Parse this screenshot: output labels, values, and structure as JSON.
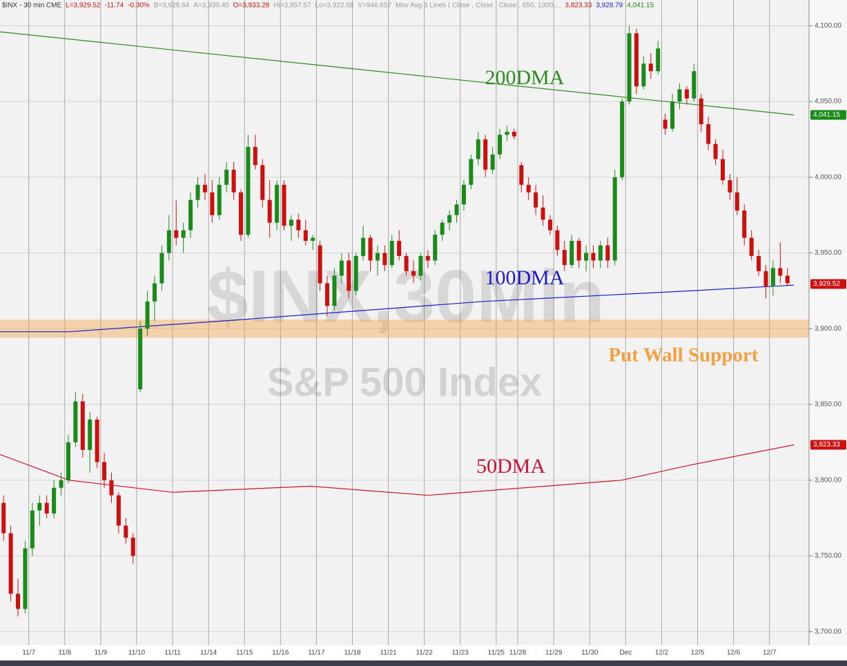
{
  "chart_data": {
    "type": "candlestick",
    "header": [
      {
        "text": "$INX - 30 min  CME",
        "color": "#333333"
      },
      {
        "text": "L=3,929.52",
        "color": "#cc1010"
      },
      {
        "text": "-11.74",
        "color": "#cc1010"
      },
      {
        "text": "-0.30%",
        "color": "#cc1010"
      },
      {
        "text": "B=3,928.64",
        "color": "#999999"
      },
      {
        "text": "A=3,930.40",
        "color": "#999999"
      },
      {
        "text": "O=3,933.28",
        "color": "#cc1010"
      },
      {
        "text": "Hi=3,957.57",
        "color": "#999999"
      },
      {
        "text": "Lo=3,922.68",
        "color": "#999999"
      },
      {
        "text": "V=946,657",
        "color": "#999999"
      },
      {
        "text": "Mov Avg 3 Lines ( Close , Close , Close , 650, 1300,...",
        "color": "#999999"
      },
      {
        "text": "3,823.33",
        "color": "#cc1010"
      },
      {
        "text": "3,928.79",
        "color": "#1a1acc"
      },
      {
        "text": "4,041.15",
        "color": "#1a8a1a"
      }
    ],
    "watermark": "$INX,30Min",
    "subtitle": "S&P 500 Index",
    "up_color": "#1a8a1a",
    "down_color": "#cc1010",
    "xlim": [
      0,
      112.5
    ],
    "xticks": [
      {
        "value": 4,
        "label": "11/7"
      },
      {
        "value": 9,
        "label": "11/8"
      },
      {
        "value": 14,
        "label": "11/9"
      },
      {
        "value": 19,
        "label": "11/10"
      },
      {
        "value": 24,
        "label": "11/11"
      },
      {
        "value": 29,
        "label": "11/14"
      },
      {
        "value": 34,
        "label": "11/15"
      },
      {
        "value": 39,
        "label": "11/16"
      },
      {
        "value": 44,
        "label": "11/17"
      },
      {
        "value": 49,
        "label": "11/18"
      },
      {
        "value": 54,
        "label": "11/21"
      },
      {
        "value": 59,
        "label": "11/22"
      },
      {
        "value": 64,
        "label": "11/23"
      },
      {
        "value": 69,
        "label": "11/25"
      },
      {
        "value": 72,
        "label": "11/28"
      },
      {
        "value": 77,
        "label": "11/29"
      },
      {
        "value": 82,
        "label": "11/30"
      },
      {
        "value": 87,
        "label": "Dec"
      },
      {
        "value": 92,
        "label": "12/2"
      },
      {
        "value": 97,
        "label": "12/5"
      },
      {
        "value": 102,
        "label": "12/6"
      },
      {
        "value": 107,
        "label": "12/7"
      }
    ],
    "ylim": [
      3691,
      4117
    ],
    "yticks": [
      {
        "value": 3700,
        "label": "3,700.00"
      },
      {
        "value": 3750,
        "label": "3,750.00"
      },
      {
        "value": 3800,
        "label": "3,800.00"
      },
      {
        "value": 3850,
        "label": "3,850.00"
      },
      {
        "value": 3900,
        "label": "3,900.00"
      },
      {
        "value": 3950,
        "label": "3,950.00"
      },
      {
        "value": 4000,
        "label": "4,000.00"
      },
      {
        "value": 4050,
        "label": "4,050.00"
      },
      {
        "value": 4100,
        "label": "4,100.00"
      }
    ],
    "grid": true,
    "open": [
      3785,
      3765,
      3725,
      3715,
      3755,
      3780,
      3785,
      3778,
      3795,
      3800,
      3825,
      3852,
      3820,
      3840,
      3812,
      3800,
      3790,
      3770,
      3762,
      3860,
      3900,
      3918,
      3930,
      3950,
      3965,
      3960,
      3965,
      3985,
      3995,
      3990,
      3975,
      3995,
      4005,
      3990,
      3962,
      4020,
      4008,
      3985,
      3970,
      3995,
      3968,
      3972,
      3965,
      3958,
      3955,
      3930,
      3915,
      3935,
      3945,
      3925,
      3948,
      3960,
      3945,
      3950,
      3942,
      3958,
      3948,
      3938,
      3935,
      3948,
      3945,
      3962,
      3970,
      3975,
      3982,
      3995,
      4012,
      4025,
      4005,
      4015,
      4028,
      4030,
      4008,
      3995,
      3990,
      3980,
      3972,
      3965,
      3952,
      3942,
      3958,
      3945,
      3950,
      3945,
      3955,
      3945,
      4000,
      4050,
      4095,
      4060,
      4075,
      4070,
      4038,
      4032,
      4050,
      4058,
      4052,
      4052,
      4035,
      4022,
      4012,
      3998,
      3990,
      3978,
      3960,
      3948,
      3938,
      3928,
      3940,
      3935
    ],
    "high": [
      3790,
      3770,
      3735,
      3760,
      3785,
      3790,
      3790,
      3800,
      3805,
      3830,
      3858,
      3857,
      3845,
      3842,
      3818,
      3805,
      3792,
      3775,
      3765,
      3905,
      3925,
      3935,
      3955,
      3975,
      3985,
      3970,
      3990,
      4000,
      4002,
      3998,
      4000,
      4010,
      4010,
      3992,
      4028,
      4028,
      4012,
      3998,
      3998,
      3998,
      3975,
      3976,
      3972,
      3962,
      3958,
      3935,
      3940,
      3950,
      3950,
      3950,
      3968,
      3962,
      3955,
      3955,
      3962,
      3965,
      3950,
      3945,
      3950,
      3952,
      3965,
      3972,
      3978,
      3985,
      3998,
      4015,
      4030,
      4028,
      4020,
      4032,
      4034,
      4032,
      4010,
      4000,
      3995,
      3988,
      3975,
      3968,
      3958,
      3962,
      3960,
      3955,
      3955,
      3958,
      3960,
      4005,
      4052,
      4100,
      4098,
      4080,
      4082,
      4090,
      4042,
      4055,
      4062,
      4060,
      4075,
      4055,
      4040,
      4025,
      4018,
      4002,
      4000,
      3982,
      3965,
      3952,
      3942,
      3945,
      3957,
      3940
    ],
    "low": [
      3760,
      3720,
      3710,
      3712,
      3750,
      3770,
      3775,
      3775,
      3790,
      3798,
      3822,
      3815,
      3805,
      3808,
      3795,
      3785,
      3765,
      3758,
      3745,
      3858,
      3895,
      3905,
      3925,
      3945,
      3955,
      3950,
      3960,
      3980,
      3985,
      3970,
      3972,
      3990,
      3985,
      3958,
      3960,
      4005,
      3980,
      3960,
      3965,
      3965,
      3958,
      3960,
      3955,
      3952,
      3925,
      3908,
      3912,
      3930,
      3920,
      3922,
      3945,
      3938,
      3935,
      3938,
      3940,
      3945,
      3935,
      3930,
      3932,
      3940,
      3942,
      3958,
      3965,
      3970,
      3978,
      3992,
      4008,
      4000,
      4002,
      4012,
      4024,
      4025,
      3990,
      3985,
      3975,
      3968,
      3962,
      3948,
      3938,
      3940,
      3940,
      3938,
      3940,
      3940,
      3940,
      3942,
      3998,
      4048,
      4055,
      4058,
      4065,
      4068,
      4028,
      4030,
      4045,
      4048,
      4050,
      4030,
      4018,
      4008,
      3995,
      3985,
      3975,
      3955,
      3945,
      3935,
      3920,
      3922,
      3930,
      3928
    ],
    "close": [
      3765,
      3725,
      3715,
      3755,
      3780,
      3785,
      3778,
      3795,
      3800,
      3825,
      3852,
      3820,
      3840,
      3812,
      3800,
      3790,
      3770,
      3762,
      3750,
      3900,
      3918,
      3930,
      3950,
      3965,
      3960,
      3965,
      3985,
      3995,
      3990,
      3975,
      3995,
      4005,
      3990,
      3962,
      4020,
      4008,
      3985,
      3970,
      3995,
      3968,
      3972,
      3965,
      3958,
      3960,
      3930,
      3915,
      3935,
      3945,
      3925,
      3948,
      3960,
      3945,
      3950,
      3942,
      3958,
      3948,
      3938,
      3935,
      3948,
      3945,
      3962,
      3970,
      3975,
      3982,
      3995,
      4012,
      4025,
      4005,
      4015,
      4028,
      4030,
      4027,
      3995,
      3990,
      3980,
      3972,
      3965,
      3952,
      3942,
      3958,
      3945,
      3950,
      3945,
      3955,
      3945,
      4000,
      4050,
      4095,
      4060,
      4075,
      4070,
      4085,
      4032,
      4050,
      4058,
      4052,
      4070,
      4035,
      4022,
      4012,
      3998,
      3990,
      3978,
      3960,
      3948,
      3938,
      3928,
      3940,
      3935,
      3930
    ],
    "series": [
      {
        "name": "200DMA",
        "color": "#2a8a1a",
        "x": [
          0,
          110.4
        ],
        "values": [
          4096,
          4041.15
        ]
      },
      {
        "name": "100DMA",
        "color": "#1a1acc",
        "x": [
          0,
          9.6,
          33.6,
          67.2,
          96,
          110.4
        ],
        "values": [
          3898,
          3898,
          3906,
          3918,
          3925,
          3928.79
        ]
      },
      {
        "name": "50DMA",
        "color": "#cc1030",
        "x": [
          0,
          9.6,
          24,
          43.2,
          59.5,
          86.4,
          96,
          110.4
        ],
        "values": [
          3817,
          3800,
          3792,
          3796,
          3790,
          3800,
          3810,
          3823.33
        ]
      }
    ],
    "last_labels": [
      {
        "value": 4041.15,
        "label": "4,041.15",
        "color": "#1a8a1a"
      },
      {
        "value": 3929.52,
        "label": "3,929.52",
        "color": "#cc1010"
      },
      {
        "value": 3823.33,
        "label": "3,823.33",
        "color": "#cc1010"
      }
    ],
    "put_wall": {
      "label": "Put Wall Support",
      "color": "#f5a040",
      "band": [
        3894,
        3906
      ]
    }
  }
}
